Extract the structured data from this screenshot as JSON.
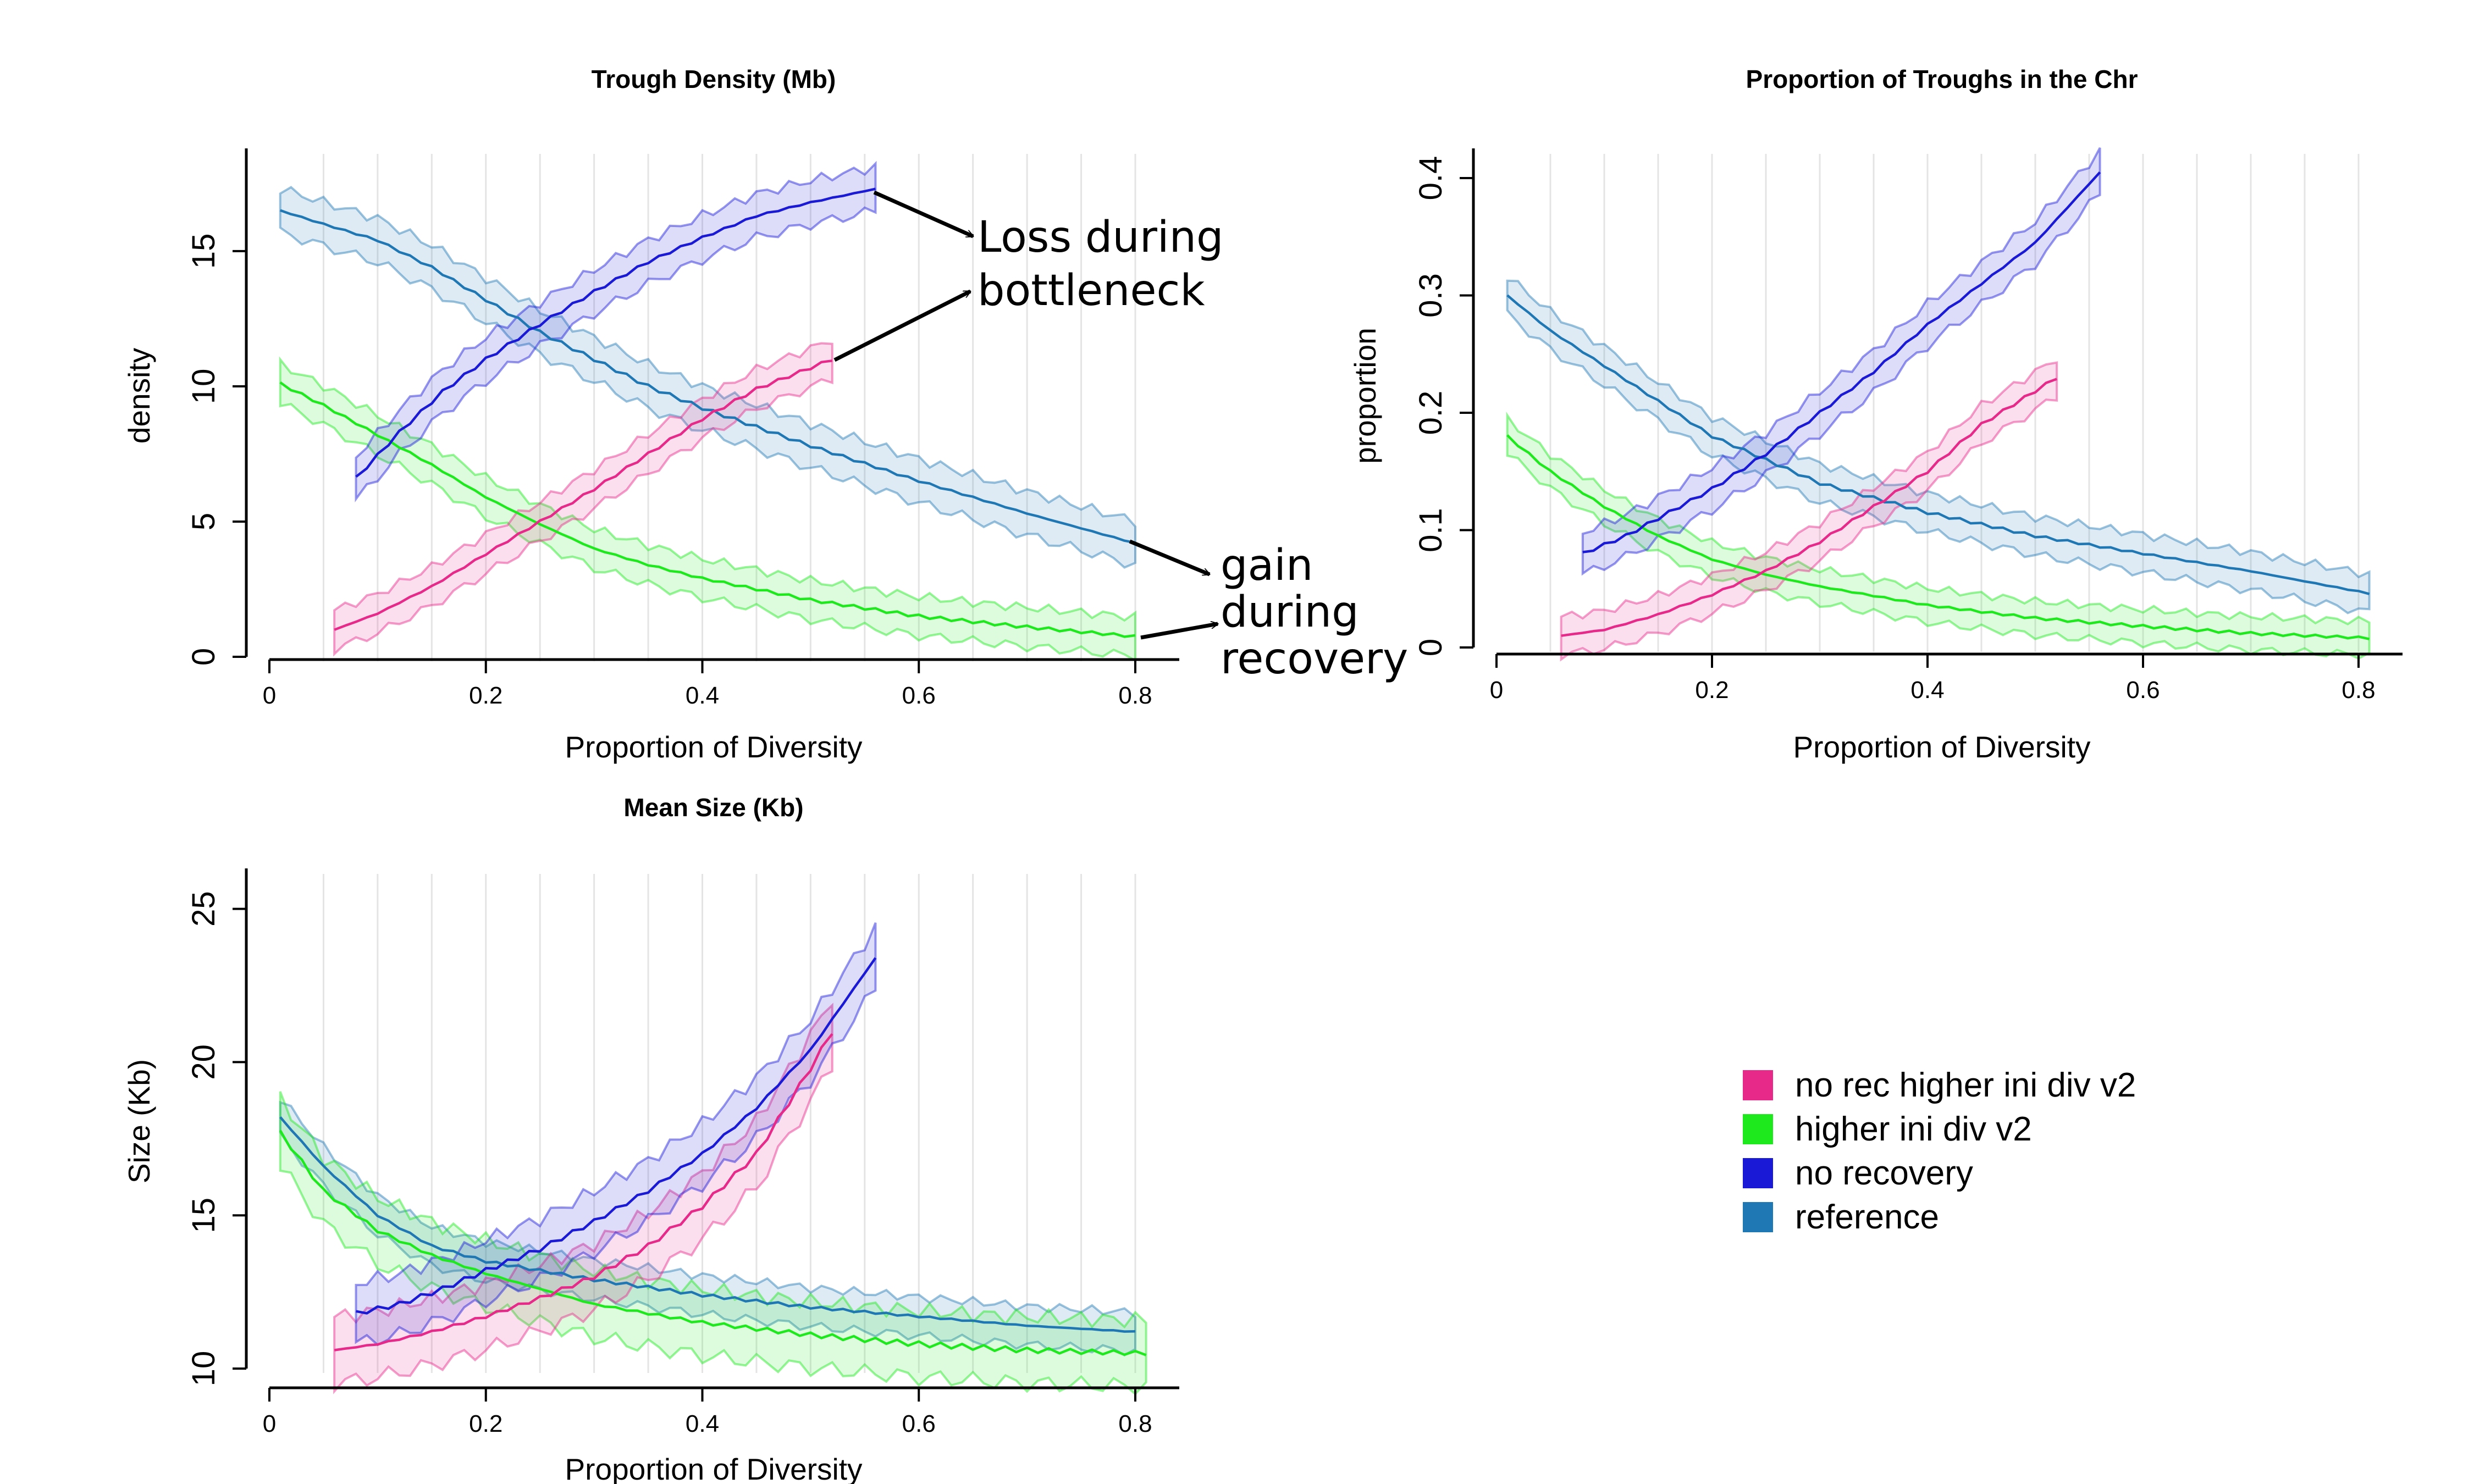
{
  "colors": {
    "no_rec_higher_ini_div_v2": "#e7298a",
    "higher_ini_div_v2": "#1de91d",
    "no_recovery": "#1919d6",
    "reference": "#1f78b4"
  },
  "legend": {
    "placement": "lower-right",
    "items": [
      {
        "label": "no rec higher ini div v2",
        "color": "#e7298a"
      },
      {
        "label": "higher ini div v2",
        "color": "#1de91d"
      },
      {
        "label": "no recovery",
        "color": "#1919d6"
      },
      {
        "label": "reference",
        "color": "#1f78b4"
      }
    ]
  },
  "annotations": {
    "loss_line1": "Loss during",
    "loss_line2": "bottleneck",
    "gain_line1": "gain",
    "gain_line2": "during",
    "gain_line3": "recovery"
  },
  "chart_data": [
    {
      "type": "line",
      "band": true,
      "title": "Trough Density (Mb)",
      "xlabel": "Proportion of Diversity",
      "ylabel": "density",
      "xlim": [
        0,
        0.8
      ],
      "ylim": [
        0,
        19
      ],
      "xticks": [
        "0",
        "0.2",
        "0.4",
        "0.6",
        "0.8"
      ],
      "yticks": [
        "0",
        "5",
        "10",
        "15"
      ],
      "grid": "vertical",
      "series": [
        {
          "name": "no rec higher ini div v2",
          "x_range": [
            0.06,
            0.52
          ],
          "anchors": [
            [
              0.06,
              1.0
            ],
            [
              0.1,
              1.6
            ],
            [
              0.15,
              2.6
            ],
            [
              0.2,
              3.8
            ],
            [
              0.25,
              5.0
            ],
            [
              0.3,
              6.2
            ],
            [
              0.35,
              7.5
            ],
            [
              0.4,
              8.8
            ],
            [
              0.45,
              9.9
            ],
            [
              0.52,
              11.0
            ]
          ],
          "halfwidth": 0.8
        },
        {
          "name": "higher ini div v2",
          "x_range": [
            0.01,
            0.8
          ],
          "anchors": [
            [
              0.01,
              10.1
            ],
            [
              0.05,
              9.3
            ],
            [
              0.1,
              8.2
            ],
            [
              0.15,
              7.1
            ],
            [
              0.2,
              5.9
            ],
            [
              0.25,
              4.9
            ],
            [
              0.3,
              4.0
            ],
            [
              0.35,
              3.4
            ],
            [
              0.4,
              2.9
            ],
            [
              0.5,
              2.1
            ],
            [
              0.6,
              1.5
            ],
            [
              0.7,
              1.1
            ],
            [
              0.8,
              0.75
            ]
          ],
          "halfwidth": 0.8
        },
        {
          "name": "no recovery",
          "x_range": [
            0.08,
            0.56
          ],
          "anchors": [
            [
              0.08,
              6.6
            ],
            [
              0.12,
              8.3
            ],
            [
              0.16,
              9.8
            ],
            [
              0.2,
              11.0
            ],
            [
              0.25,
              12.3
            ],
            [
              0.3,
              13.5
            ],
            [
              0.35,
              14.6
            ],
            [
              0.4,
              15.5
            ],
            [
              0.45,
              16.3
            ],
            [
              0.5,
              16.8
            ],
            [
              0.56,
              17.3
            ]
          ],
          "halfwidth": 0.9
        },
        {
          "name": "reference",
          "x_range": [
            0.01,
            0.8
          ],
          "anchors": [
            [
              0.01,
              16.5
            ],
            [
              0.05,
              16.0
            ],
            [
              0.1,
              15.4
            ],
            [
              0.15,
              14.4
            ],
            [
              0.2,
              13.2
            ],
            [
              0.25,
              12.0
            ],
            [
              0.3,
              11.0
            ],
            [
              0.35,
              10.0
            ],
            [
              0.4,
              9.2
            ],
            [
              0.5,
              7.8
            ],
            [
              0.6,
              6.5
            ],
            [
              0.7,
              5.3
            ],
            [
              0.8,
              4.2
            ]
          ],
          "halfwidth": 0.9
        }
      ]
    },
    {
      "type": "line",
      "band": true,
      "title": "Proportion of Troughs in the Chr",
      "xlabel": "Proportion of Diversity",
      "ylabel": "proportion",
      "xlim": [
        0,
        0.8
      ],
      "ylim": [
        0,
        0.43
      ],
      "xticks": [
        "0",
        "0.2",
        "0.4",
        "0.6",
        "0.8"
      ],
      "yticks": [
        "0",
        "0.1",
        "0.2",
        "0.3",
        "0.4"
      ],
      "grid": "vertical",
      "series": [
        {
          "name": "no rec higher ini div v2",
          "x_range": [
            0.06,
            0.52
          ],
          "anchors": [
            [
              0.06,
              0.01
            ],
            [
              0.1,
              0.015
            ],
            [
              0.15,
              0.028
            ],
            [
              0.2,
              0.045
            ],
            [
              0.25,
              0.065
            ],
            [
              0.3,
              0.09
            ],
            [
              0.35,
              0.12
            ],
            [
              0.4,
              0.15
            ],
            [
              0.45,
              0.19
            ],
            [
              0.52,
              0.23
            ]
          ],
          "halfwidth": 0.018
        },
        {
          "name": "higher ini div v2",
          "x_range": [
            0.01,
            0.81
          ],
          "anchors": [
            [
              0.01,
              0.18
            ],
            [
              0.05,
              0.15
            ],
            [
              0.1,
              0.12
            ],
            [
              0.15,
              0.095
            ],
            [
              0.2,
              0.075
            ],
            [
              0.25,
              0.062
            ],
            [
              0.3,
              0.052
            ],
            [
              0.4,
              0.036
            ],
            [
              0.5,
              0.025
            ],
            [
              0.6,
              0.018
            ],
            [
              0.7,
              0.012
            ],
            [
              0.81,
              0.008
            ]
          ],
          "halfwidth": 0.016
        },
        {
          "name": "no recovery",
          "x_range": [
            0.08,
            0.56
          ],
          "anchors": [
            [
              0.08,
              0.08
            ],
            [
              0.12,
              0.095
            ],
            [
              0.16,
              0.115
            ],
            [
              0.2,
              0.135
            ],
            [
              0.25,
              0.165
            ],
            [
              0.3,
              0.2
            ],
            [
              0.35,
              0.235
            ],
            [
              0.4,
              0.275
            ],
            [
              0.45,
              0.31
            ],
            [
              0.5,
              0.345
            ],
            [
              0.56,
              0.405
            ]
          ],
          "halfwidth": 0.02
        },
        {
          "name": "reference",
          "x_range": [
            0.01,
            0.81
          ],
          "anchors": [
            [
              0.01,
              0.3
            ],
            [
              0.05,
              0.27
            ],
            [
              0.1,
              0.24
            ],
            [
              0.15,
              0.21
            ],
            [
              0.2,
              0.18
            ],
            [
              0.25,
              0.16
            ],
            [
              0.3,
              0.14
            ],
            [
              0.4,
              0.115
            ],
            [
              0.5,
              0.095
            ],
            [
              0.6,
              0.08
            ],
            [
              0.7,
              0.065
            ],
            [
              0.81,
              0.046
            ]
          ],
          "halfwidth": 0.018
        }
      ]
    },
    {
      "type": "line",
      "band": true,
      "title": "Mean Size (Kb)",
      "xlabel": "Proportion of Diversity",
      "ylabel": "Size (Kb)",
      "xlim": [
        0,
        0.8
      ],
      "ylim": [
        10,
        26.5
      ],
      "xticks": [
        "0",
        "0.2",
        "0.4",
        "0.6",
        "0.8"
      ],
      "yticks": [
        "10",
        "15",
        "20",
        "25"
      ],
      "grid": "vertical",
      "series": [
        {
          "name": "no rec higher ini div v2",
          "x_range": [
            0.06,
            0.52
          ],
          "anchors": [
            [
              0.06,
              10.6
            ],
            [
              0.1,
              10.8
            ],
            [
              0.15,
              11.2
            ],
            [
              0.2,
              11.7
            ],
            [
              0.25,
              12.3
            ],
            [
              0.3,
              13.0
            ],
            [
              0.35,
              14.0
            ],
            [
              0.4,
              15.3
            ],
            [
              0.45,
              17.0
            ],
            [
              0.5,
              19.8
            ],
            [
              0.52,
              21.0
            ]
          ],
          "halfwidth": 1.2
        },
        {
          "name": "higher ini div v2",
          "x_range": [
            0.01,
            0.81
          ],
          "anchors": [
            [
              0.01,
              17.7
            ],
            [
              0.05,
              15.8
            ],
            [
              0.1,
              14.5
            ],
            [
              0.15,
              13.7
            ],
            [
              0.2,
              13.1
            ],
            [
              0.25,
              12.6
            ],
            [
              0.3,
              12.1
            ],
            [
              0.4,
              11.5
            ],
            [
              0.5,
              11.1
            ],
            [
              0.6,
              10.8
            ],
            [
              0.7,
              10.6
            ],
            [
              0.81,
              10.5
            ]
          ],
          "halfwidth": 1.2
        },
        {
          "name": "no recovery",
          "x_range": [
            0.08,
            0.56
          ],
          "anchors": [
            [
              0.08,
              11.8
            ],
            [
              0.12,
              12.1
            ],
            [
              0.16,
              12.6
            ],
            [
              0.2,
              13.2
            ],
            [
              0.25,
              13.9
            ],
            [
              0.3,
              14.8
            ],
            [
              0.35,
              15.8
            ],
            [
              0.4,
              17.0
            ],
            [
              0.45,
              18.5
            ],
            [
              0.5,
              20.4
            ],
            [
              0.56,
              23.4
            ]
          ],
          "halfwidth": 1.1
        },
        {
          "name": "reference",
          "x_range": [
            0.01,
            0.8
          ],
          "anchors": [
            [
              0.01,
              18.2
            ],
            [
              0.05,
              16.6
            ],
            [
              0.1,
              15.0
            ],
            [
              0.15,
              14.0
            ],
            [
              0.2,
              13.5
            ],
            [
              0.25,
              13.2
            ],
            [
              0.3,
              12.9
            ],
            [
              0.4,
              12.4
            ],
            [
              0.5,
              12.0
            ],
            [
              0.6,
              11.7
            ],
            [
              0.7,
              11.4
            ],
            [
              0.8,
              11.2
            ]
          ],
          "halfwidth": 0.7
        }
      ]
    }
  ]
}
